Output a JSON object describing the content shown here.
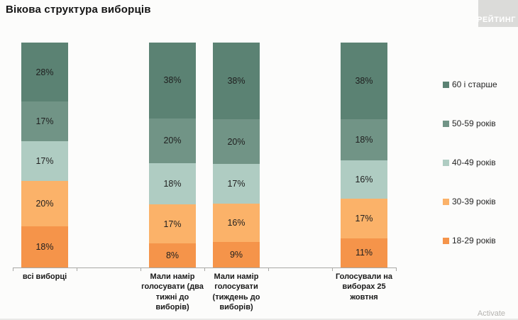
{
  "title": "Вікова структура виборців",
  "logo": {
    "text": "РЕЙТИНГ"
  },
  "watermark": "Activate",
  "chart_data": {
    "type": "bar",
    "stacked": true,
    "unit": "%",
    "title": "Вікова структура виборців",
    "categories": [
      "всі виборці",
      "Мали намір\nголосувати (два\nтижні до\nвиборів)",
      "Мали намір\nголосувати\n(тиждень до\nвиборів)",
      "Голосували на\nвиборах 25\nжовтня"
    ],
    "series": [
      {
        "name": "60 і старше",
        "color": "#5B8273",
        "values": [
          28,
          38,
          38,
          38
        ]
      },
      {
        "name": "50-59 років",
        "color": "#719486",
        "values": [
          17,
          20,
          20,
          18
        ]
      },
      {
        "name": "40-49 років",
        "color": "#AFCCC2",
        "values": [
          17,
          18,
          17,
          16
        ]
      },
      {
        "name": "30-39 років",
        "color": "#FBB269",
        "values": [
          20,
          17,
          16,
          17
        ]
      },
      {
        "name": "18-29 років",
        "color": "#F5944A",
        "values": [
          18,
          8,
          9,
          11
        ]
      }
    ],
    "value_labels": true,
    "legend_position": "right",
    "grid": false,
    "ylim": [
      0,
      100
    ]
  }
}
